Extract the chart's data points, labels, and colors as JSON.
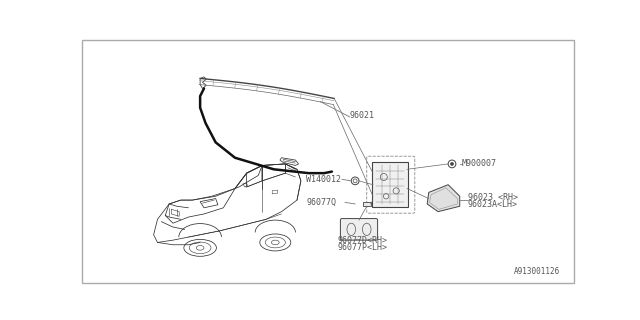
{
  "bg_color": "#ffffff",
  "line_color": "#333333",
  "text_color": "#555555",
  "label_fs": 6.0,
  "watermark": "A913001126",
  "label_texts": {
    "96021": "96021",
    "W140012": "W140012",
    "M900007": "M900007",
    "96077Q": "96077Q",
    "96023_RH": "96023 <RH>",
    "96023A_LH": "96023A<LH>",
    "960770_RH": "96077D<RH>",
    "96077P_LH": "96077P<LH>"
  },
  "car_color": "#333333",
  "rail_color": "#444444",
  "cable_color": "#111111",
  "part_color": "#555555"
}
